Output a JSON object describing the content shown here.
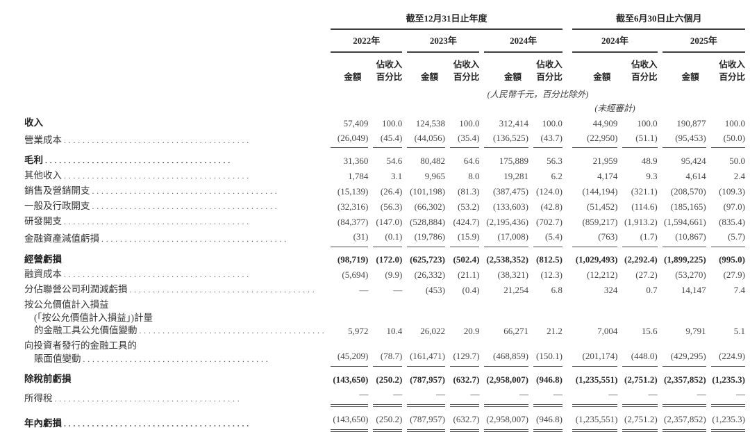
{
  "document": {
    "note_units": "(人民幣千元，百分比除外)",
    "note_unaudited": "(未經審計)"
  },
  "colors": {
    "text": "#3a3a3a",
    "rule": "#3f3f3f",
    "background": "#ffffff"
  },
  "table": {
    "header": {
      "group_annual": {
        "title": "截至12月31日止年度",
        "years": [
          "2022年",
          "2023年",
          "2024年"
        ]
      },
      "group_interim": {
        "title": "截至6月30日止六個月",
        "years": [
          "2024年",
          "2025年"
        ]
      },
      "amount_label": "金額",
      "pct_label_line1": "佔收入",
      "pct_label_line2": "百分比"
    },
    "columns": [
      "2022年 金額",
      "2022年 佔收入百分比",
      "2023年 金額",
      "2023年 佔收入百分比",
      "2024年 金額",
      "2024年 佔收入百分比",
      "截至2024年6月30日止六個月 金額",
      "截至2024年6月30日止六個月 佔收入百分比",
      "截至2025年6月30日止六個月 金額",
      "截至2025年6月30日止六個月 佔收入百分比"
    ],
    "rows": [
      {
        "label": [
          {
            "t": "收入",
            "b": 1
          }
        ],
        "v": [
          "57,409",
          "100.0",
          "124,538",
          "100.0",
          "312,414",
          "100.0",
          "44,909",
          "100.0",
          "190,877",
          "100.0"
        ],
        "bv": false,
        "rule": "",
        "gap": false
      },
      {
        "label": [
          {
            "t": "營業成本",
            "d": 1
          }
        ],
        "v": [
          "(26,049)",
          "(45.4)",
          "(44,056)",
          "(35.4)",
          "(136,525)",
          "(43.7)",
          "(22,950)",
          "(51.1)",
          "(95,453)",
          "(50.0)"
        ],
        "bv": false,
        "rule": "s",
        "gap": false
      },
      {
        "label": [
          {
            "t": "毛利",
            "b": 1,
            "d": 1
          }
        ],
        "v": [
          "31,360",
          "54.6",
          "80,482",
          "64.6",
          "175,889",
          "56.3",
          "21,959",
          "48.9",
          "95,424",
          "50.0"
        ],
        "bv": false,
        "rule": "",
        "gap": true
      },
      {
        "label": [
          {
            "t": "其他收入",
            "d": 1
          }
        ],
        "v": [
          "1,784",
          "3.1",
          "9,965",
          "8.0",
          "19,281",
          "6.2",
          "4,174",
          "9.3",
          "4,614",
          "2.4"
        ],
        "bv": false,
        "rule": "",
        "gap": false
      },
      {
        "label": [
          {
            "t": "銷售及營銷開支",
            "d": 1
          }
        ],
        "v": [
          "(15,139)",
          "(26.4)",
          "(101,198)",
          "(81.3)",
          "(387,475)",
          "(124.0)",
          "(144,194)",
          "(321.1)",
          "(208,570)",
          "(109.3)"
        ],
        "bv": false,
        "rule": "",
        "gap": false
      },
      {
        "label": [
          {
            "t": "一般及行政開支",
            "d": 1
          }
        ],
        "v": [
          "(32,316)",
          "(56.3)",
          "(66,302)",
          "(53.2)",
          "(133,603)",
          "(42.8)",
          "(51,452)",
          "(114.6)",
          "(185,165)",
          "(97.0)"
        ],
        "bv": false,
        "rule": "",
        "gap": false
      },
      {
        "label": [
          {
            "t": "研發開支",
            "d": 1
          }
        ],
        "v": [
          "(84,377)",
          "(147.0)",
          "(528,884)",
          "(424.7)",
          "(2,195,436)",
          "(702.7)",
          "(859,217)",
          "(1,913.2)",
          "(1,594,661)",
          "(835.4)"
        ],
        "bv": false,
        "rule": "",
        "gap": false
      },
      {
        "label": [
          {
            "t": "金融資產減值虧損",
            "d": 1
          }
        ],
        "v": [
          "(31)",
          "(0.1)",
          "(19,786)",
          "(15.9)",
          "(17,008)",
          "(5.4)",
          "(763)",
          "(1.7)",
          "(10,867)",
          "(5.7)"
        ],
        "bv": false,
        "rule": "s",
        "gap": false
      },
      {
        "label": [
          {
            "t": "經營虧損",
            "b": 1
          }
        ],
        "v": [
          "(98,719)",
          "(172.0)",
          "(625,723)",
          "(502.4)",
          "(2,538,352)",
          "(812.5)",
          "(1,029,493)",
          "(2,292.4)",
          "(1,899,225)",
          "(995.0)"
        ],
        "bv": true,
        "rule": "",
        "gap": true
      },
      {
        "label": [
          {
            "t": "融資成本",
            "d": 1
          }
        ],
        "v": [
          "(5,694)",
          "(9.9)",
          "(26,332)",
          "(21.1)",
          "(38,321)",
          "(12.3)",
          "(12,212)",
          "(27.2)",
          "(53,270)",
          "(27.9)"
        ],
        "bv": false,
        "rule": "",
        "gap": false
      },
      {
        "label": [
          {
            "t": "分佔聯營公司利潤減虧損",
            "d": 1
          }
        ],
        "v": [
          "—",
          "—",
          "(453)",
          "(0.4)",
          "21,254",
          "6.8",
          "324",
          "0.7",
          "14,147",
          "7.4"
        ],
        "bv": false,
        "rule": "",
        "gap": false
      },
      {
        "label": [
          {
            "t": "按公允價值計入損益"
          },
          {
            "t": "(「按公允價值計入損益」)計量",
            "i": 1
          },
          {
            "t": "的金融工具公允價值變動",
            "i": 1,
            "d": 1
          }
        ],
        "v": [
          "5,972",
          "10.4",
          "26,022",
          "20.9",
          "66,271",
          "21.2",
          "7,004",
          "15.6",
          "9,791",
          "5.1"
        ],
        "bv": false,
        "rule": "",
        "gap": false
      },
      {
        "label": [
          {
            "t": "向投資者發行的金融工具的"
          },
          {
            "t": "賬面值變動",
            "i": 1,
            "d": 1
          }
        ],
        "v": [
          "(45,209)",
          "(78.7)",
          "(161,471)",
          "(129.7)",
          "(468,859)",
          "(150.1)",
          "(201,174)",
          "(448.0)",
          "(429,295)",
          "(224.9)"
        ],
        "bv": false,
        "rule": "s",
        "gap": false
      },
      {
        "label": [
          {
            "t": "除稅前虧損",
            "b": 1
          }
        ],
        "v": [
          "(143,650)",
          "(250.2)",
          "(787,957)",
          "(632.7)",
          "(2,958,007)",
          "(946.8)",
          "(1,235,551)",
          "(2,751.2)",
          "(2,357,852)",
          "(1,235.3)"
        ],
        "bv": true,
        "rule": "",
        "gap": true
      },
      {
        "label": [
          {
            "t": "所得稅",
            "d": 1
          }
        ],
        "v": [
          "—",
          "—",
          "—",
          "—",
          "—",
          "—",
          "—",
          "—",
          "—",
          "—"
        ],
        "bv": false,
        "rule": "d",
        "gap": false
      },
      {
        "label": [
          {
            "t": "年內虧損",
            "b": 1,
            "d": 1
          }
        ],
        "v": [
          "(143,650)",
          "(250.2)",
          "(787,957)",
          "(632.7)",
          "(2,958,007)",
          "(946.8)",
          "(1,235,551)",
          "(2,751.2)",
          "(2,357,852)",
          "(1,235.3)"
        ],
        "bv": false,
        "rule": "d",
        "gap": true
      }
    ]
  }
}
